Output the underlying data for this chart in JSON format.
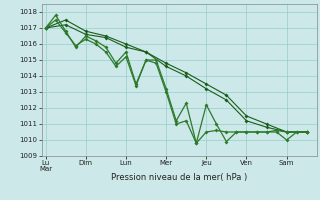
{
  "xlabel": "Pression niveau de la mer( hPa )",
  "ylim": [
    1009,
    1018.5
  ],
  "yticks": [
    1009,
    1010,
    1011,
    1012,
    1013,
    1014,
    1015,
    1016,
    1017,
    1018
  ],
  "background_color": "#cce8e8",
  "grid_color": "#99cccc",
  "line_color_dark": "#1a5c1a",
  "line_color_medium": "#2d7a2d",
  "xlim": [
    -0.2,
    13.5
  ],
  "day_tick_positions": [
    0,
    2,
    4,
    6,
    8,
    10,
    12
  ],
  "day_tick_labels": [
    "Lu\nMar",
    "Dim",
    "Lun",
    "Mer",
    "Jeu",
    "Ven",
    "Sam"
  ],
  "s1_x": [
    0,
    1,
    2,
    3,
    4,
    5,
    6,
    7,
    8,
    9,
    10,
    11,
    12,
    13
  ],
  "s1_y": [
    1017.0,
    1017.2,
    1016.6,
    1016.4,
    1015.8,
    1015.5,
    1014.6,
    1014.0,
    1013.2,
    1012.5,
    1011.2,
    1010.8,
    1010.5,
    1010.5
  ],
  "s2_x": [
    0,
    1,
    2,
    3,
    4,
    5,
    6,
    7,
    8,
    9,
    10,
    11,
    12,
    13
  ],
  "s2_y": [
    1017.0,
    1017.5,
    1016.8,
    1016.5,
    1016.0,
    1015.5,
    1014.8,
    1014.2,
    1013.5,
    1012.8,
    1011.5,
    1011.0,
    1010.5,
    1010.5
  ],
  "s3_x": [
    0,
    0.5,
    1,
    1.5,
    2,
    2.5,
    3,
    3.5,
    4,
    4.5,
    5,
    5.5,
    6,
    6.5,
    7,
    7.5,
    8,
    8.5,
    9,
    9.5,
    10,
    10.5,
    11,
    11.5,
    12,
    12.5,
    13
  ],
  "s3_y": [
    1017.0,
    1017.8,
    1016.8,
    1015.8,
    1016.5,
    1016.2,
    1015.8,
    1014.8,
    1015.5,
    1013.5,
    1015.0,
    1015.0,
    1013.2,
    1011.2,
    1012.3,
    1009.8,
    1012.2,
    1011.0,
    1009.9,
    1010.5,
    1010.5,
    1010.5,
    1010.5,
    1010.5,
    1010.0,
    1010.5,
    1010.5
  ],
  "s4_x": [
    0,
    0.5,
    1,
    1.5,
    2,
    2.5,
    3,
    3.5,
    4,
    4.5,
    5,
    5.5,
    6,
    6.5,
    7,
    7.5,
    8,
    8.5,
    9,
    9.5,
    10,
    10.5,
    11,
    11.5,
    12,
    12.5,
    13
  ],
  "s4_y": [
    1017.0,
    1017.5,
    1016.7,
    1015.9,
    1016.3,
    1016.0,
    1015.5,
    1014.6,
    1015.2,
    1013.4,
    1015.0,
    1014.8,
    1013.0,
    1011.0,
    1011.2,
    1009.8,
    1010.5,
    1010.6,
    1010.5,
    1010.5,
    1010.5,
    1010.5,
    1010.5,
    1010.6,
    1010.5,
    1010.5,
    1010.5
  ]
}
